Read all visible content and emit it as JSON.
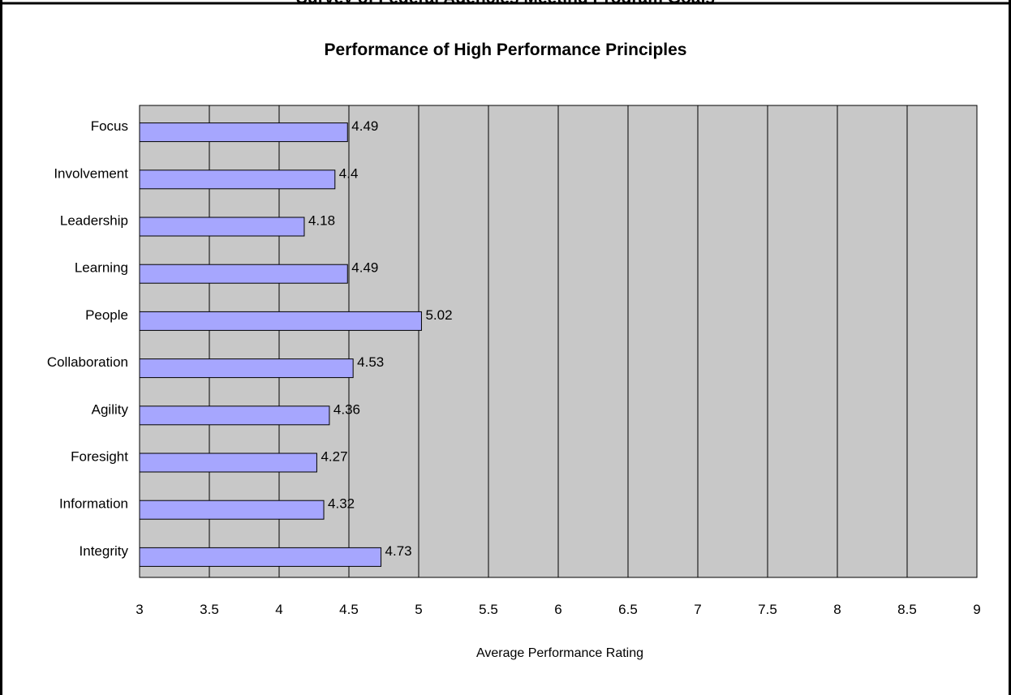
{
  "header": {
    "top_title": "Survey of Federal Agencies Meeting Program Goals"
  },
  "chart_data": {
    "type": "bar",
    "orientation": "horizontal",
    "title": "Performance of High Performance Principles",
    "xlabel": "Average Performance Rating",
    "ylabel": "",
    "categories": [
      "Focus",
      "Involvement",
      "Leadership",
      "Learning",
      "People",
      "Collaboration",
      "Agility",
      "Foresight",
      "Information",
      "Integrity"
    ],
    "values": [
      4.49,
      4.4,
      4.18,
      4.49,
      5.02,
      4.53,
      4.36,
      4.27,
      4.32,
      4.73
    ],
    "data_labels": [
      "4.49",
      "4.4",
      "4.18",
      "4.49",
      "5.02",
      "4.53",
      "4.36",
      "4.27",
      "4.32",
      "4.73"
    ],
    "xlim": [
      3,
      9
    ],
    "ticks": [
      "3",
      "3.5",
      "4",
      "4.5",
      "5",
      "5.5",
      "6",
      "6.5",
      "7",
      "7.5",
      "8",
      "8.5",
      "9"
    ],
    "grid": true,
    "legend": "none",
    "colors": {
      "bar_fill": "#a6a6fe",
      "bar_stroke": "#000000",
      "plot_background": "#c8c8c8",
      "frame": "#000000"
    }
  }
}
